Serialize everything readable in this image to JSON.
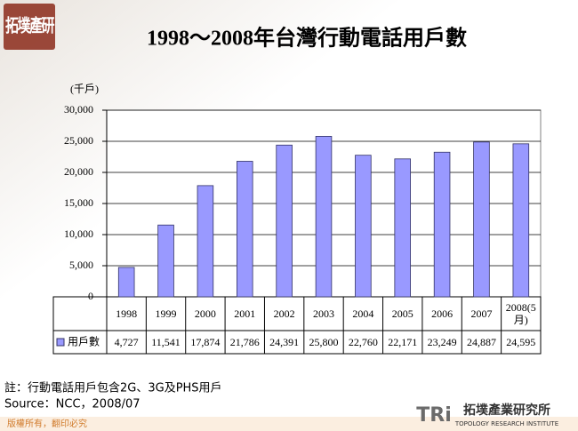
{
  "chart_data": {
    "type": "bar",
    "title": "1998～2008年台灣行動電話用戶數",
    "y_label": "(千戶)",
    "categories": [
      "1998",
      "1999",
      "2000",
      "2001",
      "2002",
      "2003",
      "2004",
      "2005",
      "2006",
      "2007",
      "2008(5月)"
    ],
    "series": [
      {
        "name": "用戶數",
        "color": "#9999ff",
        "values": [
          4727,
          11541,
          17874,
          21786,
          24391,
          25800,
          22760,
          22171,
          23249,
          24887,
          24595
        ],
        "value_labels": [
          "4,727",
          "11,541",
          "17,874",
          "21,786",
          "24,391",
          "25,800",
          "22,760",
          "22,171",
          "23,249",
          "24,887",
          "24,595"
        ]
      }
    ],
    "ylim": [
      0,
      30000
    ],
    "yticks": [
      0,
      {
        "value": 5000,
        "label": "5,000"
      },
      {
        "value": 10000,
        "label": "10,000"
      },
      {
        "value": 15000,
        "label": "15,000"
      },
      {
        "value": 20000,
        "label": "20,000"
      },
      {
        "value": 25000,
        "label": "25,000"
      },
      {
        "value": 30000,
        "label": "30,000"
      }
    ],
    "grid": true,
    "notes": [
      "註：行動電話用戶包含2G、3G及PHS用戶",
      "Source：NCC，2008/07"
    ]
  },
  "logo": {
    "top": "拓墣產研",
    "brand_short": "TRi",
    "brand": "拓墣產業研究所",
    "brand_en": "TOPOLOGY RESEARCH INSTITUTE"
  },
  "footer": {
    "copyright": "版權所有，翻印必究"
  }
}
